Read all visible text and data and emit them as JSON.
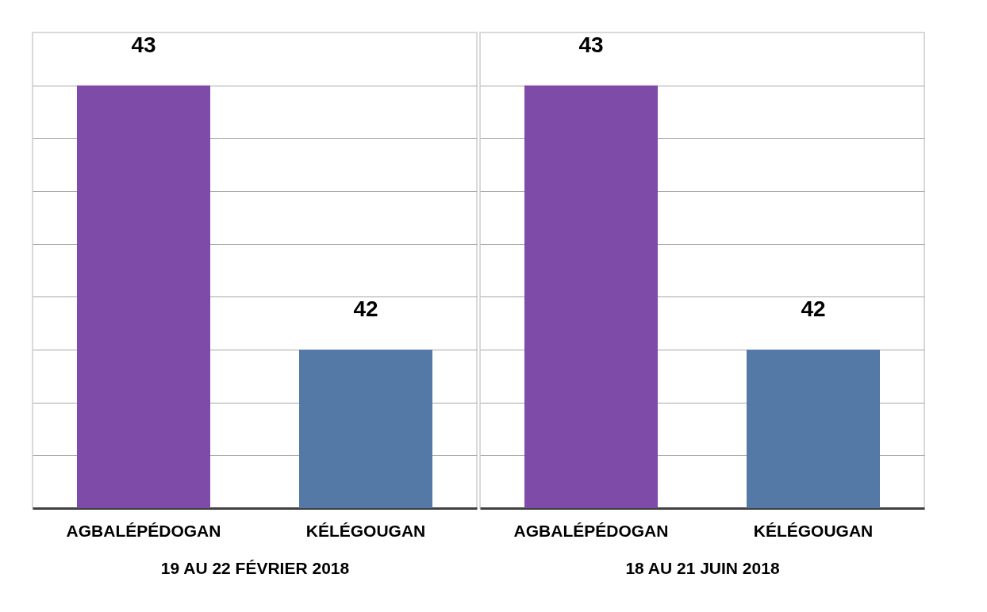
{
  "chart_data": [
    {
      "type": "bar",
      "xlabel": "19 AU 22 FÉVRIER 2018",
      "categories": [
        "AGBALÉPÉDOGAN",
        "KÉLÉGOUGAN"
      ],
      "values": [
        43,
        42
      ],
      "colors": [
        "#7e4ba8",
        "#5479a6"
      ],
      "data_labels": true,
      "ylim": [
        41.4,
        43.2
      ],
      "yticks": [
        {
          "value": 41.6,
          "label": null
        },
        {
          "value": 41.8,
          "label": null
        },
        {
          "value": 42.0,
          "label": null
        },
        {
          "value": 42.2,
          "label": null
        },
        {
          "value": 42.4,
          "label": null
        },
        {
          "value": 42.6,
          "label": null
        },
        {
          "value": 42.8,
          "label": null
        },
        {
          "value": 43.0,
          "label": null
        }
      ],
      "grid": "y",
      "tick_labels": "x"
    },
    {
      "type": "bar",
      "xlabel": "18 AU 21 JUIN 2018",
      "categories": [
        "AGBALÉPÉDOGAN",
        "KÉLÉGOUGAN"
      ],
      "values": [
        43,
        42
      ],
      "colors": [
        "#7e4ba8",
        "#5479a6"
      ],
      "data_labels": true,
      "ylim": [
        41.4,
        43.2
      ],
      "yticks": [
        {
          "value": 41.6,
          "label": null
        },
        {
          "value": 41.8,
          "label": null
        },
        {
          "value": 42.0,
          "label": null
        },
        {
          "value": 42.2,
          "label": null
        },
        {
          "value": 42.4,
          "label": null
        },
        {
          "value": 42.6,
          "label": null
        },
        {
          "value": 42.8,
          "label": null
        },
        {
          "value": 43.0,
          "label": null
        }
      ],
      "grid": "y",
      "tick_labels": "x"
    }
  ]
}
